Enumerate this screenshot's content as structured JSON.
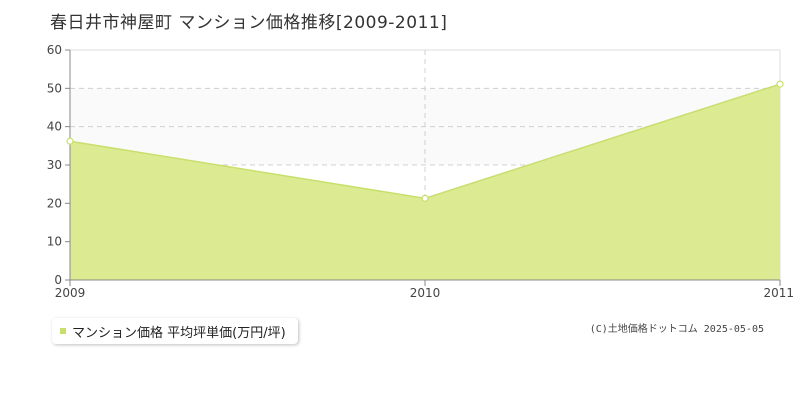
{
  "colors": {
    "fill": "#dceb92",
    "line": "#c8df6e",
    "grid": "#d0d0d0",
    "axis": "#888888",
    "band": "#fafafa"
  },
  "chart_data": {
    "type": "area",
    "title": "春日井市神屋町 マンション価格推移[2009-2011]",
    "x": [
      2009,
      2010,
      2011
    ],
    "x_tick_labels": [
      "2009",
      "2010",
      "2011"
    ],
    "series": [
      {
        "name": "マンション価格 平均坪単価(万円/坪)",
        "values": [
          36.2,
          21.3,
          51.1
        ]
      }
    ],
    "ylim": [
      0,
      60
    ],
    "y_ticks": [
      0,
      10,
      20,
      30,
      40,
      50,
      60
    ],
    "y_tick_labels": [
      "0",
      "10",
      "20",
      "30",
      "40",
      "50",
      "60"
    ],
    "grid": true,
    "legend_position": "bottom-left"
  },
  "credit": "(C)土地価格ドットコム 2025-05-05"
}
